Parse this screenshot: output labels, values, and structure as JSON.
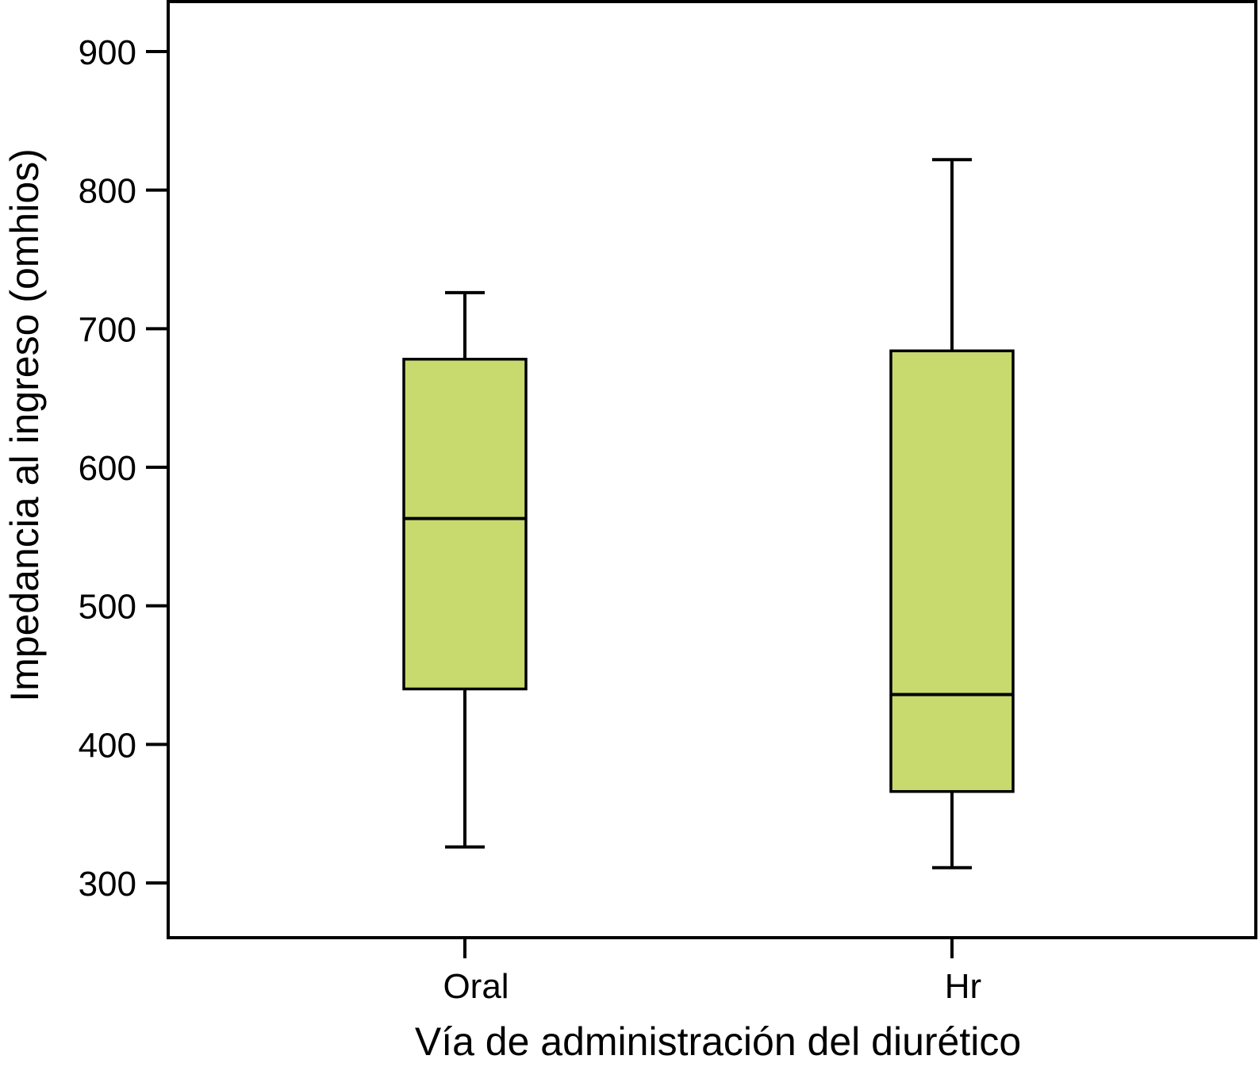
{
  "chart_data": {
    "type": "box",
    "title": "",
    "xlabel": "Vía de administración del diurético",
    "ylabel": "Impedancia al ingreso (omhios)",
    "ylim": [
      270,
      930
    ],
    "yticks": [
      300,
      400,
      500,
      600,
      700,
      800,
      900
    ],
    "yticks_labels": [
      "300",
      "400",
      "500",
      "600",
      "700",
      "800",
      "900"
    ],
    "categories": [
      "Oral",
      "Hr"
    ],
    "boxes": [
      {
        "category": "Oral",
        "min": 326,
        "q1": 440,
        "median": 563,
        "q3": 678,
        "max": 726
      },
      {
        "category": "Hr",
        "min": 311,
        "q1": 366,
        "median": 436,
        "q3": 684,
        "max": 822
      }
    ],
    "grid": false,
    "legend": "none",
    "colors": {
      "box_fill": "#c8da6e",
      "stroke": "#000000",
      "background": "#ffffff"
    }
  }
}
